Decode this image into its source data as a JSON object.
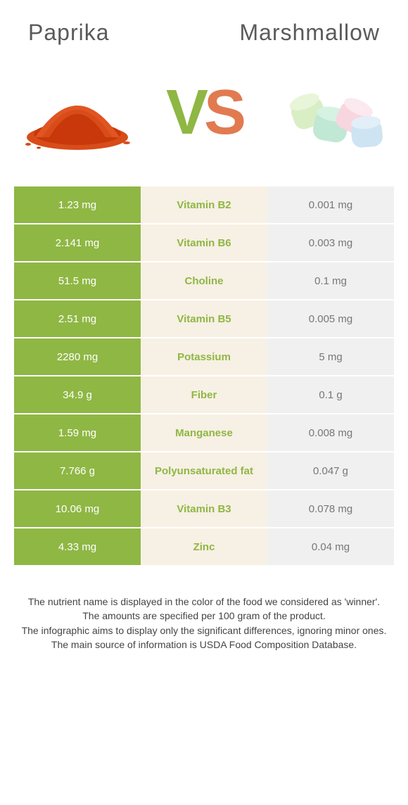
{
  "header": {
    "left_title": "Paprika",
    "right_title": "Marshmallow"
  },
  "vs": {
    "v": "V",
    "s": "S"
  },
  "colors": {
    "left": "#8fb744",
    "right": "#e27a50",
    "mid_bg": "#f7f0e4",
    "light_bg": "#f0f0f0",
    "light_text": "#777777"
  },
  "rows": [
    {
      "left": "1.23 mg",
      "label": "Vitamin B2",
      "right": "0.001 mg",
      "winner": "left"
    },
    {
      "left": "2.141 mg",
      "label": "Vitamin B6",
      "right": "0.003 mg",
      "winner": "left"
    },
    {
      "left": "51.5 mg",
      "label": "Choline",
      "right": "0.1 mg",
      "winner": "left"
    },
    {
      "left": "2.51 mg",
      "label": "Vitamin B5",
      "right": "0.005 mg",
      "winner": "left"
    },
    {
      "left": "2280 mg",
      "label": "Potassium",
      "right": "5 mg",
      "winner": "left"
    },
    {
      "left": "34.9 g",
      "label": "Fiber",
      "right": "0.1 g",
      "winner": "left"
    },
    {
      "left": "1.59 mg",
      "label": "Manganese",
      "right": "0.008 mg",
      "winner": "left"
    },
    {
      "left": "7.766 g",
      "label": "Polyunsaturated fat",
      "right": "0.047 g",
      "winner": "left"
    },
    {
      "left": "10.06 mg",
      "label": "Vitamin B3",
      "right": "0.078 mg",
      "winner": "left"
    },
    {
      "left": "4.33 mg",
      "label": "Zinc",
      "right": "0.04 mg",
      "winner": "left"
    }
  ],
  "footnote": {
    "line1": "The nutrient name is displayed in the color of the food we considered as 'winner'.",
    "line2": "The amounts are specified per 100 gram of the product.",
    "line3": "The infographic aims to display only the significant differences, ignoring minor ones.",
    "line4": "The main source of information is USDA Food Composition Database."
  }
}
